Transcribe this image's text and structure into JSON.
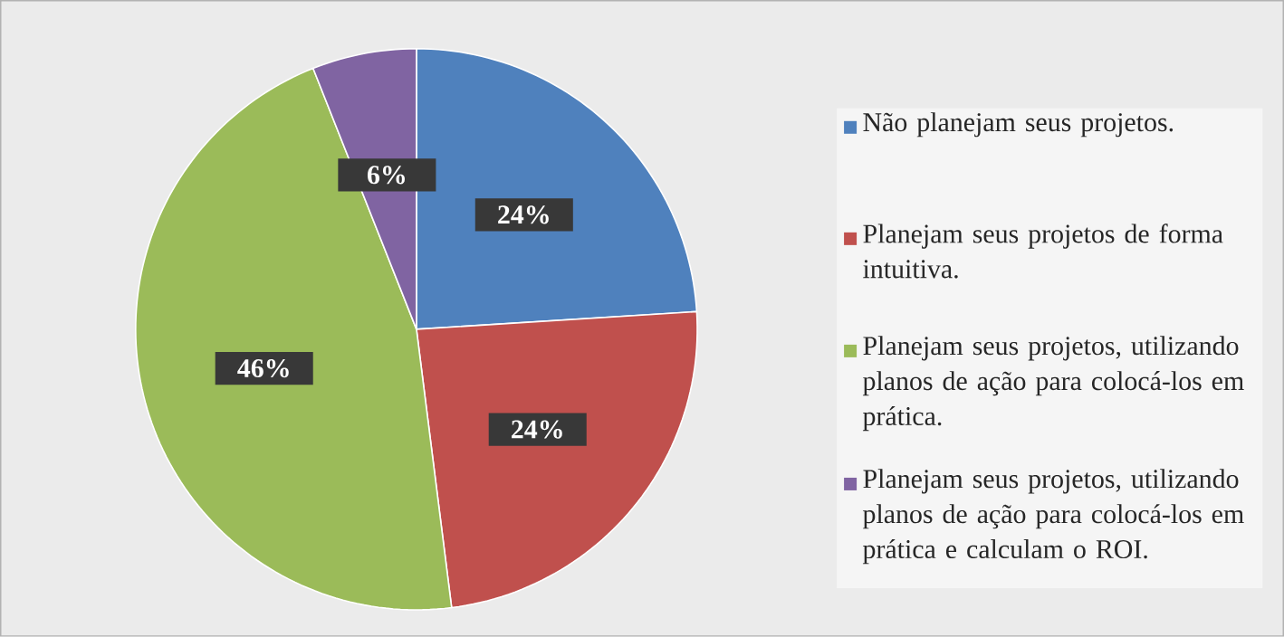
{
  "chart_data": {
    "type": "pie",
    "categories": [
      "Não planejam seus projetos.",
      "Planejam seus projetos de forma intuitiva.",
      "Planejam seus projetos, utilizando planos de ação para colocá-los em prática.",
      "Planejam seus projetos, utilizando planos de ação para colocá-los em prática e calculam o ROI."
    ],
    "values": [
      24,
      24,
      46,
      6
    ],
    "colors": [
      "#4f81bd",
      "#c0504d",
      "#9bbb59",
      "#8064a2"
    ],
    "value_labels": [
      "24%",
      "24%",
      "46%",
      "6%"
    ],
    "legend": "right"
  }
}
